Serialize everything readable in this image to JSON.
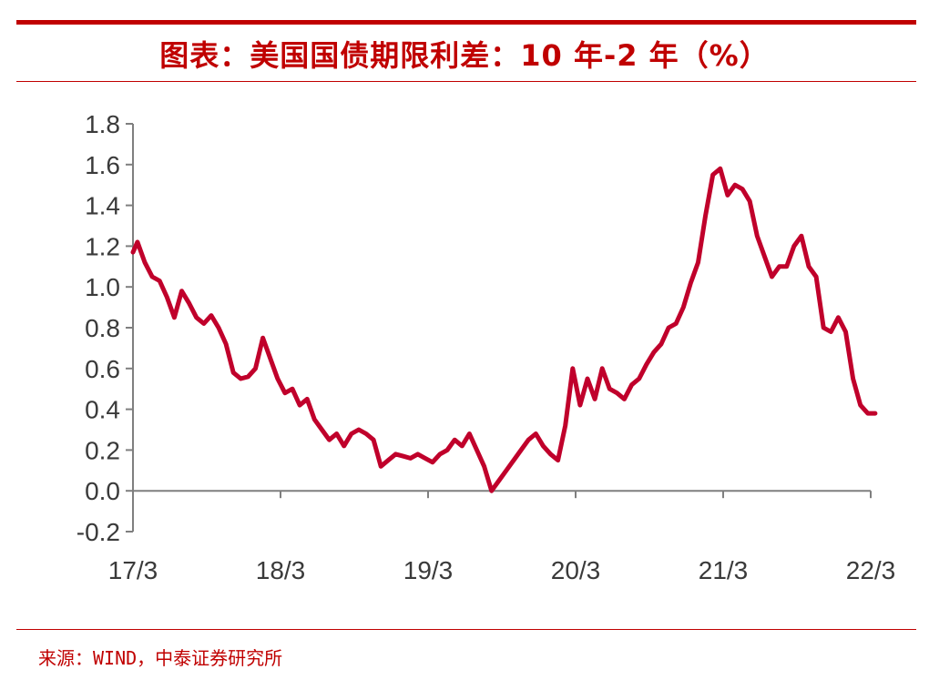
{
  "title": "图表：美国国债期限利差：10 年-2 年（%）",
  "source": "来源：WIND，中泰证券研究所",
  "colors": {
    "accent": "#c00000",
    "series": "#c0002b",
    "axis": "#7f7f7f"
  },
  "chart_data": {
    "type": "line",
    "title": "图表：美国国债期限利差：10 年-2 年（%）",
    "xlabel": "",
    "ylabel": "",
    "ylim": [
      -0.2,
      1.8
    ],
    "yticks": [
      "-0.2",
      "0.0",
      "0.2",
      "0.4",
      "0.6",
      "0.8",
      "1.0",
      "1.2",
      "1.4",
      "1.6",
      "1.8"
    ],
    "xticks": [
      "17/3",
      "18/3",
      "19/3",
      "20/3",
      "21/3",
      "22/3"
    ],
    "grid": false,
    "legend": "none",
    "series": [
      {
        "x": [
          2017.17,
          2017.2,
          2017.25,
          2017.3,
          2017.35,
          2017.4,
          2017.45,
          2017.5,
          2017.55,
          2017.6,
          2017.65,
          2017.7,
          2017.75,
          2017.8,
          2017.85,
          2017.9,
          2017.95,
          2018.0,
          2018.05,
          2018.1,
          2018.15,
          2018.2,
          2018.25,
          2018.3,
          2018.35,
          2018.4,
          2018.45,
          2018.5,
          2018.55,
          2018.6,
          2018.65,
          2018.7,
          2018.75,
          2018.8,
          2018.85,
          2018.9,
          2018.95,
          2019.0,
          2019.05,
          2019.1,
          2019.15,
          2019.2,
          2019.25,
          2019.3,
          2019.35,
          2019.4,
          2019.45,
          2019.5,
          2019.55,
          2019.6,
          2019.65,
          2019.7,
          2019.75,
          2019.8,
          2019.85,
          2019.9,
          2019.95,
          2020.0,
          2020.05,
          2020.1,
          2020.15,
          2020.2,
          2020.25,
          2020.3,
          2020.35,
          2020.4,
          2020.45,
          2020.5,
          2020.55,
          2020.6,
          2020.65,
          2020.7,
          2020.75,
          2020.8,
          2020.85,
          2020.9,
          2020.95,
          2021.0,
          2021.05,
          2021.1,
          2021.15,
          2021.2,
          2021.25,
          2021.3,
          2021.35,
          2021.4,
          2021.45,
          2021.5,
          2021.55,
          2021.6,
          2021.65,
          2021.7,
          2021.75,
          2021.8,
          2021.85,
          2021.9,
          2021.95,
          2022.0,
          2022.05,
          2022.1,
          2022.15,
          2022.2
        ],
        "values": [
          1.17,
          1.22,
          1.12,
          1.05,
          1.03,
          0.95,
          0.85,
          0.98,
          0.92,
          0.85,
          0.82,
          0.86,
          0.8,
          0.72,
          0.58,
          0.55,
          0.56,
          0.6,
          0.75,
          0.65,
          0.55,
          0.48,
          0.5,
          0.42,
          0.45,
          0.35,
          0.3,
          0.25,
          0.28,
          0.22,
          0.28,
          0.3,
          0.28,
          0.25,
          0.12,
          0.15,
          0.18,
          0.17,
          0.16,
          0.18,
          0.16,
          0.14,
          0.18,
          0.2,
          0.25,
          0.22,
          0.28,
          0.2,
          0.12,
          0.0,
          0.05,
          0.1,
          0.15,
          0.2,
          0.25,
          0.28,
          0.22,
          0.18,
          0.15,
          0.32,
          0.6,
          0.42,
          0.55,
          0.45,
          0.6,
          0.5,
          0.48,
          0.45,
          0.52,
          0.55,
          0.62,
          0.68,
          0.72,
          0.8,
          0.82,
          0.9,
          1.02,
          1.12,
          1.35,
          1.55,
          1.58,
          1.45,
          1.5,
          1.48,
          1.42,
          1.25,
          1.15,
          1.05,
          1.1,
          1.1,
          1.2,
          1.25,
          1.1,
          1.05,
          0.8,
          0.78,
          0.85,
          0.78,
          0.55,
          0.42,
          0.38,
          0.38
        ]
      }
    ]
  }
}
